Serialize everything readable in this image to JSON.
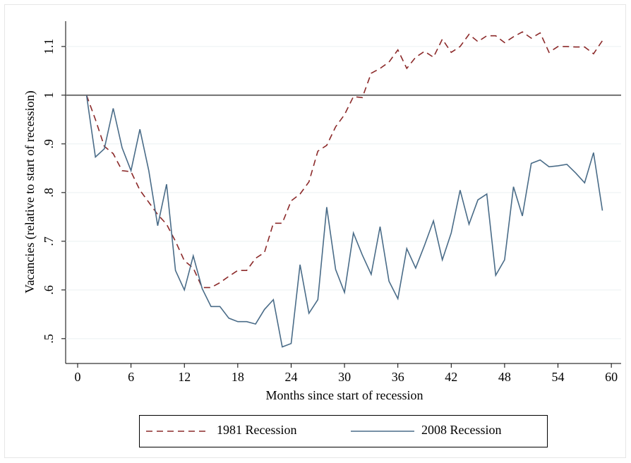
{
  "chart_data": {
    "type": "line",
    "xlabel": "Months since start of recession",
    "ylabel": "Vacancies (relative to start of recession)",
    "x": [
      1,
      2,
      3,
      4,
      5,
      6,
      7,
      8,
      9,
      10,
      11,
      12,
      13,
      14,
      15,
      16,
      17,
      18,
      19,
      20,
      21,
      22,
      23,
      24,
      25,
      26,
      27,
      28,
      29,
      30,
      31,
      32,
      33,
      34,
      35,
      36,
      37,
      38,
      39,
      40,
      41,
      42,
      43,
      44,
      45,
      46,
      47,
      48,
      49,
      50,
      51,
      52,
      53,
      54,
      55,
      56,
      57,
      58,
      59
    ],
    "series": [
      {
        "name": "1981 Recession",
        "color": "#8c2a2a",
        "dash": true,
        "values": [
          1.0,
          0.95,
          0.895,
          0.88,
          0.845,
          0.843,
          0.805,
          0.78,
          0.755,
          0.735,
          0.7,
          0.66,
          0.645,
          0.605,
          0.605,
          0.615,
          0.628,
          0.64,
          0.64,
          0.665,
          0.677,
          0.737,
          0.737,
          0.783,
          0.797,
          0.822,
          0.885,
          0.897,
          0.935,
          0.96,
          0.997,
          0.995,
          1.045,
          1.055,
          1.068,
          1.093,
          1.055,
          1.078,
          1.09,
          1.078,
          1.115,
          1.088,
          1.1,
          1.125,
          1.11,
          1.122,
          1.122,
          1.108,
          1.12,
          1.13,
          1.117,
          1.128,
          1.088,
          1.1,
          1.1,
          1.099,
          1.099,
          1.085,
          1.112
        ]
      },
      {
        "name": "2008 Recession",
        "color": "#4a6c88",
        "dash": false,
        "values": [
          1.0,
          0.873,
          0.89,
          0.973,
          0.892,
          0.845,
          0.93,
          0.845,
          0.732,
          0.817,
          0.64,
          0.6,
          0.67,
          0.603,
          0.566,
          0.566,
          0.542,
          0.535,
          0.535,
          0.53,
          0.56,
          0.58,
          0.483,
          0.49,
          0.652,
          0.552,
          0.58,
          0.77,
          0.642,
          0.595,
          0.717,
          0.672,
          0.632,
          0.73,
          0.618,
          0.582,
          0.685,
          0.645,
          0.692,
          0.742,
          0.662,
          0.717,
          0.805,
          0.735,
          0.785,
          0.797,
          0.63,
          0.662,
          0.812,
          0.752,
          0.86,
          0.867,
          0.853,
          0.855,
          0.858,
          0.84,
          0.82,
          0.882,
          0.763
        ]
      }
    ],
    "reference_line": 1,
    "reference_color": "#707070",
    "xlim": [
      -1.35,
      61.1
    ],
    "ylim": [
      0.449,
      1.152
    ],
    "xticks": [
      0,
      6,
      12,
      18,
      24,
      30,
      36,
      42,
      48,
      54,
      60
    ],
    "yticks": [
      {
        "value": 0.5,
        "label": ".5"
      },
      {
        "value": 0.6,
        "label": ".6"
      },
      {
        "value": 0.7,
        "label": ".7"
      },
      {
        "value": 0.8,
        "label": ".8"
      },
      {
        "value": 0.9,
        "label": ".9"
      },
      1,
      1.1
    ],
    "grid": true
  }
}
